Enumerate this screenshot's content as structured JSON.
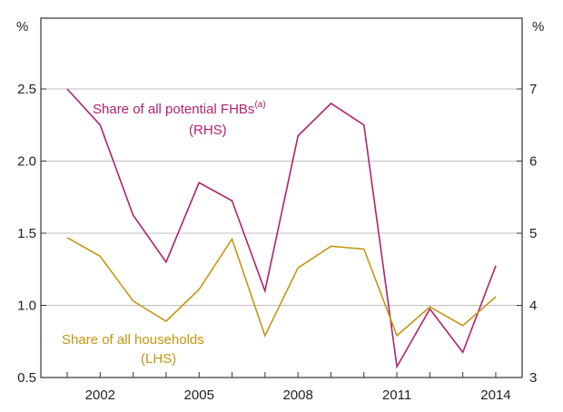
{
  "chart_data": {
    "type": "line",
    "x": [
      2001,
      2002,
      2003,
      2004,
      2005,
      2006,
      2007,
      2008,
      2009,
      2010,
      2011,
      2012,
      2013,
      2014
    ],
    "xticks": [
      "2002",
      "2005",
      "2008",
      "2011",
      "2014"
    ],
    "xlim": [
      2000.2,
      2014.8
    ],
    "y_left": {
      "unit": "%",
      "ylim": [
        0.5,
        2.5
      ],
      "ticks": [
        "0.5",
        "1.0",
        "1.5",
        "2.0",
        "2.5"
      ]
    },
    "y_right": {
      "unit": "%",
      "ylim": [
        3,
        7
      ],
      "ticks": [
        "3",
        "4",
        "5",
        "6",
        "7"
      ]
    },
    "series": [
      {
        "axis": "right",
        "color": "#b0226e",
        "label_line1": "Share of all potential FHBs",
        "label_sup": "(a)",
        "label_line2": "(RHS)",
        "values": [
          7.0,
          6.5,
          5.25,
          4.6,
          5.7,
          5.45,
          4.2,
          6.35,
          6.8,
          6.5,
          3.15,
          3.95,
          3.35,
          4.55
        ]
      },
      {
        "axis": "left",
        "color": "#c4960f",
        "label_line1": "Share of all households",
        "label_line2": "(LHS)",
        "values": [
          1.47,
          1.34,
          1.03,
          0.89,
          1.11,
          1.46,
          0.79,
          1.26,
          1.41,
          1.39,
          0.79,
          0.99,
          0.86,
          1.06
        ]
      }
    ],
    "grid": "horizontal"
  }
}
